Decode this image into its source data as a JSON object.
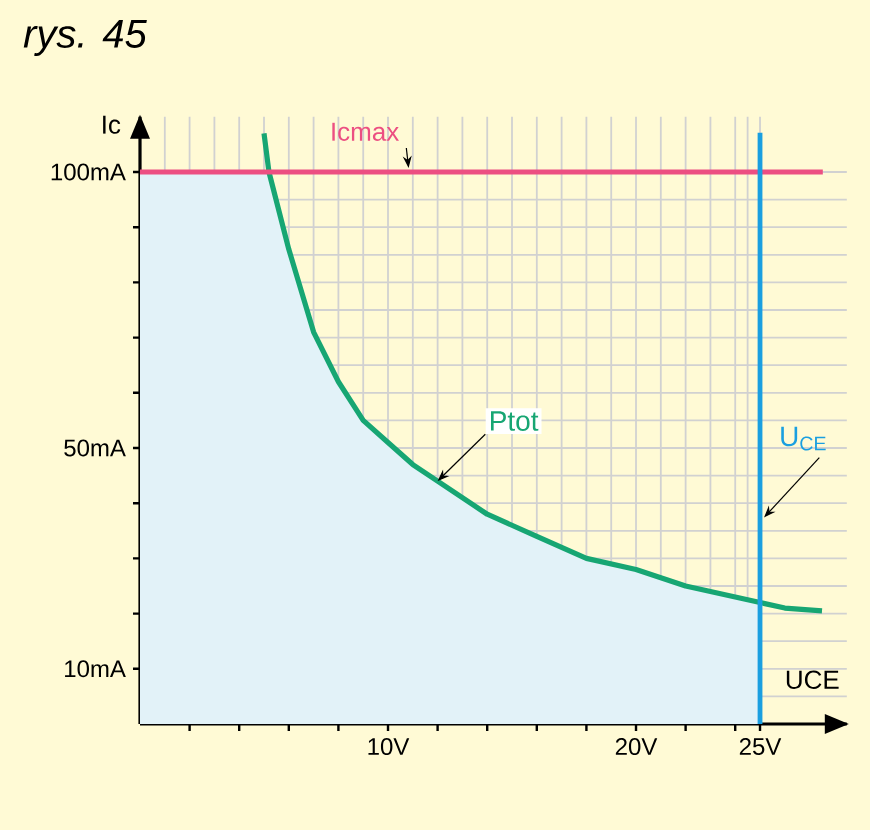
{
  "chart_data": {
    "type": "line",
    "title": "rys. 45",
    "xlabel": "UCE",
    "ylabel": "Ic",
    "xlim": [
      0,
      28.5
    ],
    "ylim": [
      0,
      110
    ],
    "xticks": [
      {
        "value": 2,
        "label": null
      },
      {
        "value": 4,
        "label": null
      },
      {
        "value": 6,
        "label": null
      },
      {
        "value": 8,
        "label": null
      },
      {
        "value": 10,
        "label": "10V"
      },
      {
        "value": 12,
        "label": null
      },
      {
        "value": 14,
        "label": null
      },
      {
        "value": 16,
        "label": null
      },
      {
        "value": 18,
        "label": null
      },
      {
        "value": 20,
        "label": "20V"
      },
      {
        "value": 22,
        "label": null
      },
      {
        "value": 24,
        "label": null
      },
      {
        "value": 25,
        "label": "25V"
      }
    ],
    "yticks": [
      {
        "value": 10,
        "label": "10mA"
      },
      {
        "value": 20,
        "label": null
      },
      {
        "value": 30,
        "label": null
      },
      {
        "value": 40,
        "label": null
      },
      {
        "value": 50,
        "label": "50mA"
      },
      {
        "value": 60,
        "label": null
      },
      {
        "value": 70,
        "label": null
      },
      {
        "value": 80,
        "label": null
      },
      {
        "value": 90,
        "label": null
      },
      {
        "value": 100,
        "label": "100mA"
      }
    ],
    "grid": true,
    "series": [
      {
        "type": "area",
        "color": "#e2f2f8",
        "x": [
          0,
          5.2,
          6,
          7,
          8,
          9,
          10,
          11,
          12,
          14,
          16,
          18,
          20,
          22,
          24,
          25
        ],
        "values": [
          100,
          100,
          86,
          71,
          62,
          55,
          51,
          47,
          44,
          38,
          34,
          30,
          28,
          25,
          23,
          22
        ]
      },
      {
        "name": "Ptot",
        "color": "#17a673",
        "x": [
          5,
          5.2,
          6,
          7,
          8,
          9,
          10,
          11,
          12,
          14,
          16,
          18,
          20,
          22,
          24,
          26,
          27.5
        ],
        "values": [
          107,
          100,
          86,
          71,
          62,
          55,
          51,
          47,
          44,
          38,
          34,
          30,
          28,
          25,
          23,
          21,
          20.5
        ]
      }
    ],
    "ref_lines": [
      {
        "axis": "y",
        "value": 100,
        "label": "Icmax",
        "color": "#ec4f82"
      },
      {
        "axis": "x",
        "value": 25,
        "label": "U$_{CE}$",
        "color": "#1a9fe0"
      }
    ]
  }
}
